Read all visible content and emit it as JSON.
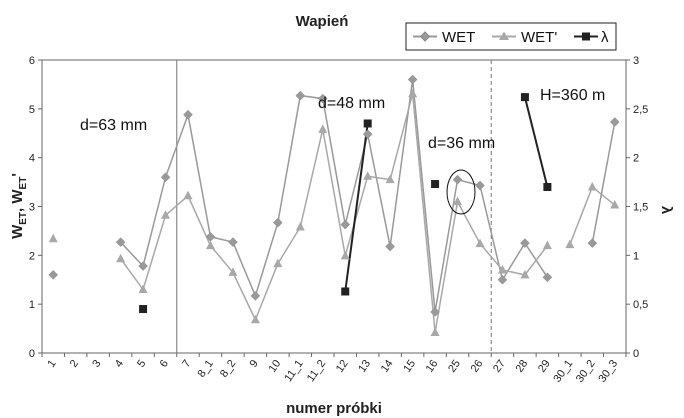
{
  "chart_data": {
    "type": "line",
    "title": "Wapień",
    "xlabel": "numer próbki",
    "ylabel_left_main": "W",
    "ylabel_left_sub1": "ET",
    "ylabel_left_mid": ", W",
    "ylabel_left_sub2": "ET",
    "ylabel_left_end": "'",
    "ylabel_right": "λ",
    "categories": [
      "1",
      "2",
      "3",
      "4",
      "5",
      "6",
      "7",
      "8_1",
      "8_2",
      "9",
      "10",
      "11_1",
      "11_2",
      "12",
      "13",
      "14",
      "15",
      "16",
      "25",
      "26",
      "27",
      "28",
      "29",
      "30_1",
      "30_2",
      "30_3"
    ],
    "ylim_left": [
      0,
      6
    ],
    "yticks_left": [
      "0",
      "1",
      "2",
      "3",
      "4",
      "5",
      "6"
    ],
    "ylim_right": [
      0,
      3
    ],
    "yticks_right": [
      "0",
      "0,5",
      "1",
      "1,5",
      "2",
      "2,5",
      "3"
    ],
    "grid": false,
    "legend_position": "top-right",
    "series": [
      {
        "name": "WET",
        "axis": "left",
        "marker": "diamond",
        "color": "#999999",
        "values": [
          1.6,
          null,
          null,
          2.27,
          1.78,
          3.6,
          4.88,
          2.38,
          2.27,
          1.17,
          2.67,
          5.27,
          5.21,
          2.63,
          4.48,
          2.18,
          5.6,
          0.84,
          3.55,
          3.43,
          1.5,
          2.25,
          1.55,
          null,
          null,
          null
        ]
      },
      {
        "name": "WET'",
        "axis": "left",
        "marker": "triangle",
        "color": "#a8a8a8",
        "values": [
          2.34,
          null,
          null,
          1.93,
          1.3,
          2.82,
          3.22,
          2.2,
          1.65,
          0.68,
          1.83,
          2.58,
          4.58,
          1.99,
          3.62,
          3.55,
          5.31,
          0.42,
          3.1,
          2.24,
          1.7,
          1.6,
          2.2,
          2.22,
          3.4,
          3.03
        ]
      },
      {
        "name": "λ",
        "axis": "right",
        "marker": "square",
        "color": "#222222",
        "values": [
          null,
          null,
          null,
          null,
          0.45,
          null,
          null,
          null,
          null,
          null,
          null,
          null,
          null,
          0.63,
          2.35,
          null,
          null,
          1.73,
          null,
          null,
          null,
          2.62,
          1.7,
          null,
          null,
          null
        ]
      }
    ],
    "extra_wet_points": [
      {
        "x_index": 24,
        "value": 2.25
      },
      {
        "x_index": 25,
        "value": 4.73
      }
    ],
    "line_breaks_after_index": [
      0,
      22
    ],
    "lambda_segments": [
      [
        13,
        14
      ],
      [
        21,
        22
      ]
    ],
    "vertical_lines": [
      {
        "after_index": 5,
        "style": "solid"
      },
      {
        "after_index": 19,
        "style": "dashed"
      }
    ],
    "annotations": [
      "d=63 mm",
      "d=48 mm",
      "d=36 mm",
      "H=360 m"
    ]
  }
}
